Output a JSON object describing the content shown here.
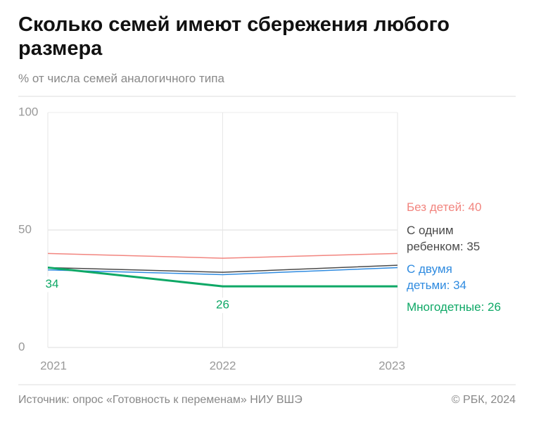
{
  "chart_data": {
    "type": "line",
    "title": "Сколько семей имеют сбережения любого размера",
    "subtitle": "% от числа семей аналогичного типа",
    "source": "Источник: опрос «Готовность к переменам» НИУ ВШЭ",
    "credit": "© РБК, 2024",
    "categories": [
      "2021",
      "2022",
      "2023"
    ],
    "ylim": [
      0,
      100
    ],
    "yticks": [
      0,
      50,
      100
    ],
    "grid": true,
    "series": [
      {
        "name": "Без детей",
        "label": "Без детей: 40",
        "color": "#f2857f",
        "values": [
          40,
          38,
          40
        ]
      },
      {
        "name": "С одним ребенком",
        "label": "С одним ребенком: 35",
        "color": "#4a4a4a",
        "values": [
          34,
          32,
          35
        ]
      },
      {
        "name": "С двумя детьми",
        "label": "С двумя детьми: 34",
        "color": "#2f8be0",
        "values": [
          33,
          31,
          34
        ]
      },
      {
        "name": "Многодетные",
        "label": "Многодетные: 26",
        "color": "#0ea866",
        "values": [
          34,
          26,
          26
        ],
        "data_labels": [
          0,
          1
        ]
      }
    ]
  }
}
